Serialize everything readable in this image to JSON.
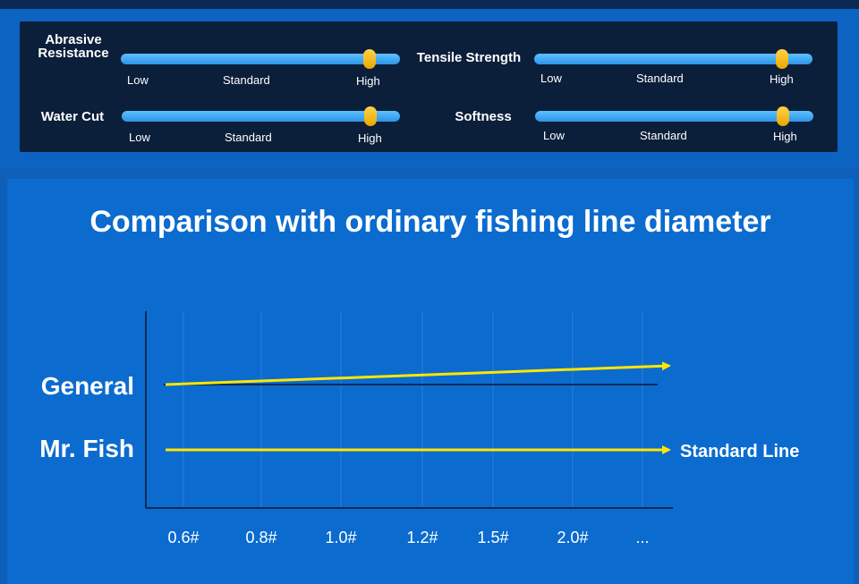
{
  "meters": [
    {
      "label": "Abrasive\nResistance",
      "ticks": [
        "Low",
        "Standard",
        "High"
      ],
      "level": 0.9
    },
    {
      "label": "Tensile Strength",
      "ticks": [
        "Low",
        "Standard",
        "High"
      ],
      "level": 0.9
    },
    {
      "label": "Water Cut",
      "ticks": [
        "Low",
        "Standard",
        "High"
      ],
      "level": 0.9
    },
    {
      "label": "Softness",
      "ticks": [
        "Low",
        "Standard",
        "High"
      ],
      "level": 0.9
    }
  ],
  "colors": {
    "track": "#4db8ff",
    "knob": "#f5b800",
    "arrow": "#ffe600"
  },
  "chart_data": {
    "type": "line",
    "title": "Comparison with ordinary fishing line diameter",
    "categories": [
      "0.6#",
      "0.8#",
      "1.0#",
      "1.2#",
      "1.5#",
      "2.0#",
      "..."
    ],
    "series": [
      {
        "name": "General",
        "trend": "increasing"
      },
      {
        "name": "Mr. Fish",
        "trend": "flat"
      }
    ],
    "annotation": "Standard Line",
    "grid": true
  }
}
